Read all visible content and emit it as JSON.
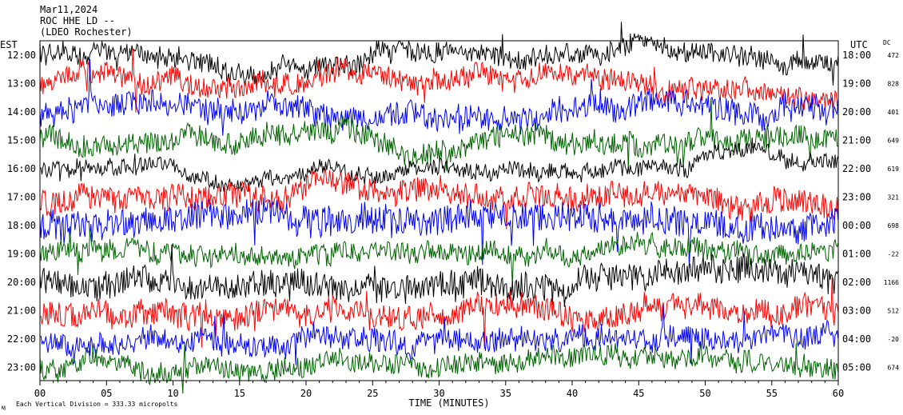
{
  "header": {
    "date": "Mar11,2024",
    "station": "ROC HHE LD --",
    "location": "(LDEO Rochester)"
  },
  "footer": {
    "division_note": "Each Vertical Division =  333.33 micropolts",
    "corner_mark": "ӎ"
  },
  "chart_data": {
    "type": "line",
    "title": "",
    "xlabel": "TIME (MINUTES)",
    "x_ticks": [
      "00",
      "05",
      "10",
      "15",
      "20",
      "25",
      "30",
      "35",
      "40",
      "45",
      "50",
      "55",
      "60"
    ],
    "xlim": [
      0,
      60
    ],
    "left_axis_title": "EST",
    "right_axis_title": "UTC",
    "dc_title": "DC",
    "grid": false,
    "trace_colors": [
      "#000000",
      "#ff0000",
      "#0000ff",
      "#006400"
    ],
    "traces": [
      {
        "est": "12:00",
        "utc": "18:00",
        "dc": "472"
      },
      {
        "est": "13:00",
        "utc": "19:00",
        "dc": "828"
      },
      {
        "est": "14:00",
        "utc": "20:00",
        "dc": "401"
      },
      {
        "est": "15:00",
        "utc": "21:00",
        "dc": "649"
      },
      {
        "est": "16:00",
        "utc": "22:00",
        "dc": "619"
      },
      {
        "est": "17:00",
        "utc": "23:00",
        "dc": "321"
      },
      {
        "est": "18:00",
        "utc": "00:00",
        "dc": "698"
      },
      {
        "est": "19:00",
        "utc": "01:00",
        "dc": "-22"
      },
      {
        "est": "20:00",
        "utc": "02:00",
        "dc": "1166"
      },
      {
        "est": "21:00",
        "utc": "03:00",
        "dc": "512"
      },
      {
        "est": "22:00",
        "utc": "04:00",
        "dc": "-20"
      },
      {
        "est": "23:00",
        "utc": "05:00",
        "dc": "674"
      }
    ]
  }
}
